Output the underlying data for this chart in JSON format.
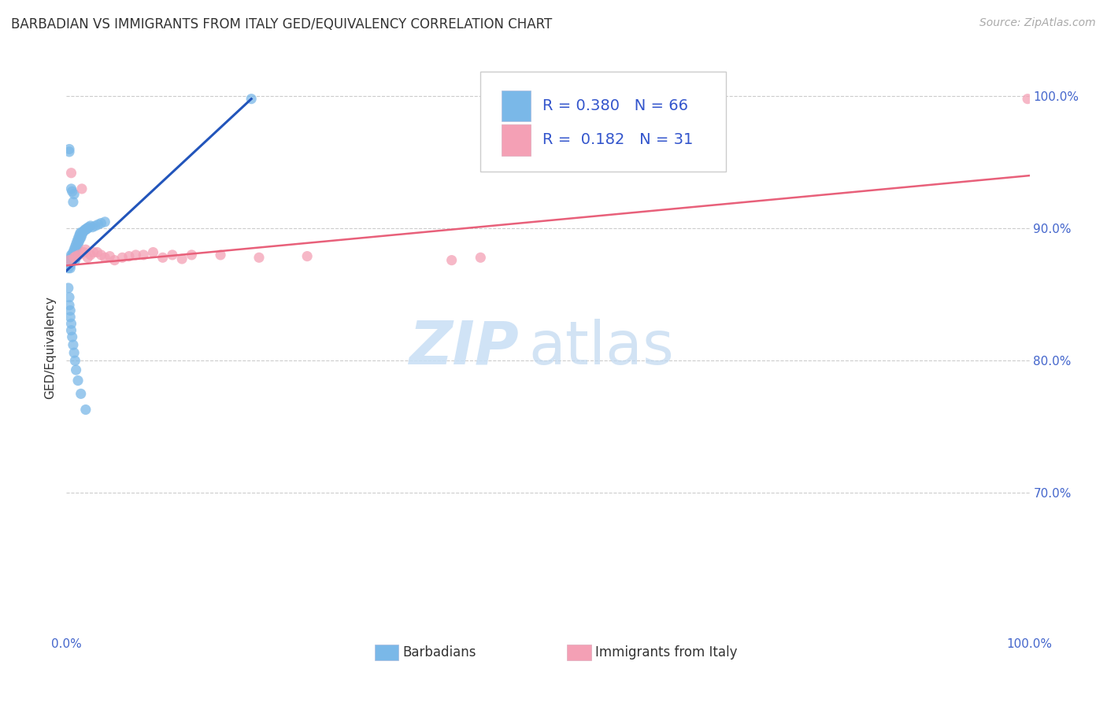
{
  "title": "BARBADIAN VS IMMIGRANTS FROM ITALY GED/EQUIVALENCY CORRELATION CHART",
  "source": "Source: ZipAtlas.com",
  "ylabel": "GED/Equivalency",
  "watermark_zip": "ZIP",
  "watermark_atlas": "atlas",
  "blue_label": "Barbadians",
  "pink_label": "Immigrants from Italy",
  "blue_R": 0.38,
  "blue_N": 66,
  "pink_R": 0.182,
  "pink_N": 31,
  "xlim": [
    0.0,
    1.0
  ],
  "ylim": [
    0.595,
    1.025
  ],
  "xtick_positions": [
    0.0,
    0.2,
    0.4,
    0.6,
    0.8,
    1.0
  ],
  "xtick_labels": [
    "0.0%",
    "",
    "",
    "",
    "",
    "100.0%"
  ],
  "ytick_labels": [
    "100.0%",
    "90.0%",
    "80.0%",
    "70.0%"
  ],
  "ytick_positions": [
    1.0,
    0.9,
    0.8,
    0.7
  ],
  "blue_color": "#7ab8e8",
  "pink_color": "#f4a0b5",
  "blue_line_color": "#2255bb",
  "pink_line_color": "#e8607a",
  "background_color": "#ffffff",
  "grid_color": "#cccccc",
  "blue_line_x": [
    0.0,
    0.192
  ],
  "blue_line_y": [
    0.868,
    0.998
  ],
  "pink_line_x": [
    0.0,
    1.0
  ],
  "pink_line_y": [
    0.872,
    0.94
  ],
  "blue_x": [
    0.002,
    0.002,
    0.003,
    0.003,
    0.003,
    0.004,
    0.004,
    0.004,
    0.005,
    0.005,
    0.005,
    0.006,
    0.006,
    0.006,
    0.007,
    0.007,
    0.007,
    0.008,
    0.008,
    0.008,
    0.009,
    0.009,
    0.009,
    0.01,
    0.01,
    0.01,
    0.011,
    0.011,
    0.012,
    0.012,
    0.013,
    0.013,
    0.014,
    0.014,
    0.015,
    0.015,
    0.016,
    0.017,
    0.018,
    0.019,
    0.02,
    0.021,
    0.022,
    0.023,
    0.025,
    0.027,
    0.03,
    0.033,
    0.036,
    0.04,
    0.002,
    0.003,
    0.003,
    0.004,
    0.004,
    0.005,
    0.005,
    0.006,
    0.007,
    0.008,
    0.009,
    0.01,
    0.012,
    0.015,
    0.02,
    0.192
  ],
  "blue_y": [
    0.87,
    0.873,
    0.876,
    0.96,
    0.958,
    0.872,
    0.875,
    0.87,
    0.878,
    0.93,
    0.88,
    0.876,
    0.88,
    0.928,
    0.878,
    0.882,
    0.92,
    0.88,
    0.884,
    0.926,
    0.882,
    0.886,
    0.876,
    0.884,
    0.888,
    0.878,
    0.886,
    0.89,
    0.888,
    0.892,
    0.89,
    0.894,
    0.892,
    0.896,
    0.893,
    0.897,
    0.895,
    0.897,
    0.898,
    0.899,
    0.899,
    0.9,
    0.9,
    0.901,
    0.902,
    0.901,
    0.902,
    0.903,
    0.904,
    0.905,
    0.855,
    0.848,
    0.842,
    0.838,
    0.833,
    0.828,
    0.823,
    0.818,
    0.812,
    0.806,
    0.8,
    0.793,
    0.785,
    0.775,
    0.763,
    0.998
  ],
  "pink_x": [
    0.003,
    0.005,
    0.008,
    0.01,
    0.013,
    0.016,
    0.018,
    0.02,
    0.022,
    0.025,
    0.028,
    0.032,
    0.036,
    0.04,
    0.045,
    0.05,
    0.058,
    0.065,
    0.072,
    0.08,
    0.09,
    0.1,
    0.11,
    0.12,
    0.13,
    0.16,
    0.2,
    0.25,
    0.4,
    0.43,
    0.998
  ],
  "pink_y": [
    0.876,
    0.942,
    0.878,
    0.879,
    0.88,
    0.93,
    0.882,
    0.884,
    0.878,
    0.88,
    0.882,
    0.882,
    0.88,
    0.878,
    0.879,
    0.876,
    0.878,
    0.879,
    0.88,
    0.88,
    0.882,
    0.878,
    0.88,
    0.877,
    0.88,
    0.88,
    0.878,
    0.879,
    0.876,
    0.878,
    0.998
  ],
  "title_fontsize": 12,
  "axis_label_fontsize": 11,
  "tick_fontsize": 11,
  "legend_fontsize": 14,
  "source_fontsize": 10,
  "watermark_fontsize_zip": 55,
  "watermark_fontsize_atlas": 55
}
